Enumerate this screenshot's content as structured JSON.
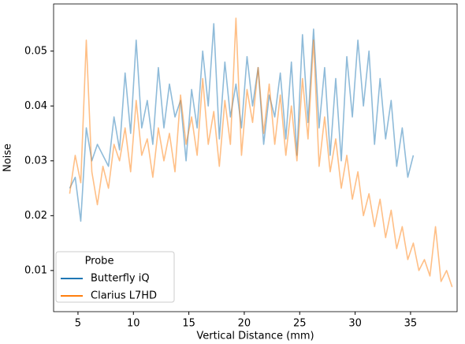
{
  "chart_data": {
    "type": "line",
    "xlabel": "Vertical Distance (mm)",
    "ylabel": "Noise",
    "legend_title": "Probe",
    "legend": "lower left",
    "x": [
      4.25,
      4.75,
      5.25,
      5.75,
      6.25,
      6.75,
      7.25,
      7.75,
      8.25,
      8.75,
      9.25,
      9.75,
      10.25,
      10.75,
      11.25,
      11.75,
      12.25,
      12.75,
      13.25,
      13.75,
      14.25,
      14.75,
      15.25,
      15.75,
      16.25,
      16.75,
      17.25,
      17.75,
      18.25,
      18.75,
      19.25,
      19.75,
      20.25,
      20.75,
      21.25,
      21.75,
      22.25,
      22.75,
      23.25,
      23.75,
      24.25,
      24.75,
      25.25,
      25.75,
      26.25,
      26.75,
      27.25,
      27.75,
      28.25,
      28.75,
      29.25,
      29.75,
      30.25,
      30.75,
      31.25,
      31.75,
      32.25,
      32.75,
      33.25,
      33.75,
      34.25,
      34.75,
      35.25,
      35.75,
      36.25,
      36.75,
      37.25,
      37.75,
      38.25,
      38.75
    ],
    "series": [
      {
        "name": "Butterfly iQ",
        "color": "#1f77b4",
        "values": [
          0.025,
          0.027,
          0.019,
          0.036,
          0.03,
          0.033,
          0.031,
          0.029,
          0.038,
          0.032,
          0.046,
          0.035,
          0.052,
          0.036,
          0.041,
          0.033,
          0.047,
          0.036,
          0.044,
          0.038,
          0.041,
          0.03,
          0.043,
          0.036,
          0.05,
          0.04,
          0.055,
          0.034,
          0.048,
          0.038,
          0.044,
          0.036,
          0.049,
          0.04,
          0.047,
          0.033,
          0.042,
          0.038,
          0.046,
          0.034,
          0.048,
          0.031,
          0.053,
          0.037,
          0.054,
          0.036,
          0.047,
          0.031,
          0.045,
          0.03,
          0.049,
          0.038,
          0.052,
          0.04,
          0.05,
          0.033,
          0.045,
          0.034,
          0.041,
          0.029,
          0.036,
          0.027,
          0.031,
          null,
          null,
          null,
          null,
          null,
          null,
          null
        ]
      },
      {
        "name": "Clarius L7HD",
        "color": "#ff7f0e",
        "values": [
          0.024,
          0.031,
          0.026,
          0.052,
          0.028,
          0.022,
          0.029,
          0.025,
          0.033,
          0.03,
          0.036,
          0.028,
          0.041,
          0.031,
          0.034,
          0.027,
          0.036,
          0.03,
          0.035,
          0.028,
          0.042,
          0.033,
          0.038,
          0.031,
          0.045,
          0.033,
          0.039,
          0.029,
          0.041,
          0.033,
          0.056,
          0.031,
          0.043,
          0.037,
          0.047,
          0.035,
          0.044,
          0.033,
          0.042,
          0.031,
          0.04,
          0.03,
          0.045,
          0.034,
          0.052,
          0.029,
          0.038,
          0.028,
          0.034,
          0.025,
          0.031,
          0.023,
          0.028,
          0.02,
          0.024,
          0.018,
          0.023,
          0.016,
          0.021,
          0.014,
          0.018,
          0.012,
          0.015,
          0.01,
          0.012,
          0.009,
          0.018,
          0.008,
          0.01,
          0.007
        ]
      }
    ],
    "xlim": [
      2.8,
      39.2
    ],
    "ylim": [
      0.0025,
      0.0586
    ],
    "xticks": [
      5,
      10,
      15,
      20,
      25,
      30,
      35
    ],
    "yticks": [
      0.01,
      0.02,
      0.03,
      0.04,
      0.05
    ]
  }
}
